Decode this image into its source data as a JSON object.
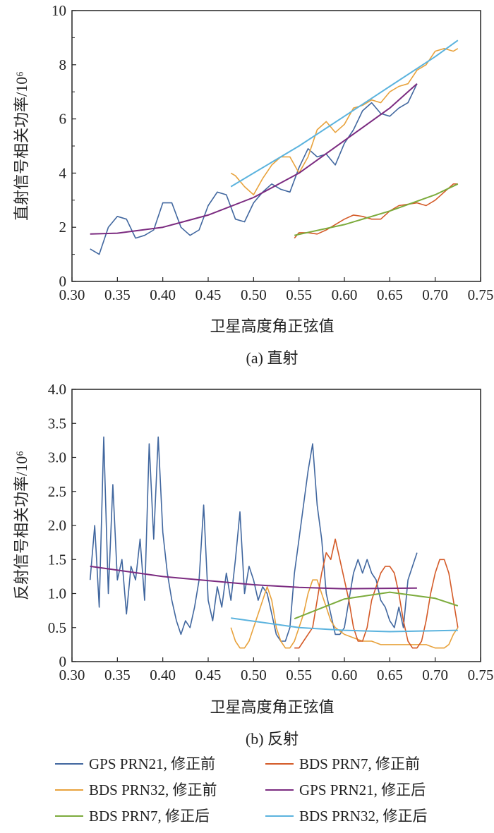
{
  "colors": {
    "gps21_raw": "#41679f",
    "bds7_raw": "#d45a27",
    "bds32_raw": "#e8a23c",
    "gps21_fit": "#7b2b80",
    "bds7_fit": "#7cab3c",
    "bds32_fit": "#5bb3de"
  },
  "legend": [
    {
      "key": "gps21_raw",
      "label": "GPS PRN21, 修正前"
    },
    {
      "key": "bds7_raw",
      "label": "BDS PRN7, 修正前"
    },
    {
      "key": "bds32_raw",
      "label": "BDS PRN32, 修正前"
    },
    {
      "key": "gps21_fit",
      "label": "GPS PRN21, 修正后"
    },
    {
      "key": "bds7_fit",
      "label": "BDS PRN7, 修正后"
    },
    {
      "key": "bds32_fit",
      "label": "BDS PRN32, 修正后"
    }
  ],
  "chart_data": [
    {
      "type": "line",
      "caption": "(a) 直射",
      "xlabel": "卫星高度角正弦值",
      "ylabel": "直射信号相关功率/10⁶",
      "xlim": [
        0.3,
        0.75
      ],
      "ylim": [
        0,
        10
      ],
      "xticks": [
        "0.30",
        "0.35",
        "0.40",
        "0.45",
        "0.50",
        "0.55",
        "0.60",
        "0.65",
        "0.70",
        "0.75"
      ],
      "yticks": [
        "0",
        "2",
        "4",
        "6",
        "8",
        "10"
      ],
      "ytick_values": [
        0,
        2,
        4,
        6,
        8,
        10
      ],
      "grid": false,
      "series": [
        {
          "key": "gps21_raw",
          "x": [
            0.32,
            0.33,
            0.34,
            0.35,
            0.36,
            0.37,
            0.38,
            0.39,
            0.4,
            0.41,
            0.42,
            0.43,
            0.44,
            0.45,
            0.46,
            0.47,
            0.48,
            0.49,
            0.5,
            0.51,
            0.52,
            0.53,
            0.54,
            0.55,
            0.56,
            0.57,
            0.58,
            0.59,
            0.6,
            0.61,
            0.62,
            0.63,
            0.64,
            0.65,
            0.66,
            0.67,
            0.68
          ],
          "y": [
            1.2,
            1.0,
            2.0,
            2.4,
            2.3,
            1.6,
            1.7,
            1.9,
            2.9,
            2.9,
            2.0,
            1.7,
            1.9,
            2.8,
            3.3,
            3.2,
            2.3,
            2.2,
            2.9,
            3.3,
            3.6,
            3.4,
            3.3,
            4.2,
            4.9,
            4.6,
            4.7,
            4.3,
            5.1,
            5.6,
            6.3,
            6.6,
            6.2,
            6.1,
            6.4,
            6.6,
            7.3
          ]
        },
        {
          "key": "bds32_raw",
          "x": [
            0.475,
            0.48,
            0.49,
            0.5,
            0.51,
            0.52,
            0.53,
            0.54,
            0.55,
            0.56,
            0.57,
            0.58,
            0.59,
            0.6,
            0.61,
            0.62,
            0.63,
            0.64,
            0.65,
            0.66,
            0.67,
            0.68,
            0.69,
            0.7,
            0.71,
            0.72,
            0.725
          ],
          "y": [
            4.0,
            3.9,
            3.5,
            3.2,
            3.8,
            4.3,
            4.6,
            4.6,
            4.0,
            4.6,
            5.6,
            5.9,
            5.5,
            5.8,
            6.4,
            6.5,
            6.7,
            6.6,
            7.0,
            7.2,
            7.3,
            7.8,
            8.0,
            8.5,
            8.6,
            8.5,
            8.6
          ]
        },
        {
          "key": "bds7_raw",
          "x": [
            0.545,
            0.55,
            0.56,
            0.57,
            0.58,
            0.59,
            0.6,
            0.61,
            0.62,
            0.63,
            0.64,
            0.65,
            0.66,
            0.67,
            0.68,
            0.69,
            0.7,
            0.71,
            0.72,
            0.725
          ],
          "y": [
            1.6,
            1.8,
            1.8,
            1.75,
            1.9,
            2.1,
            2.3,
            2.45,
            2.4,
            2.3,
            2.3,
            2.6,
            2.8,
            2.85,
            2.9,
            2.8,
            3.0,
            3.3,
            3.6,
            3.6
          ]
        },
        {
          "key": "gps21_fit",
          "x": [
            0.32,
            0.35,
            0.4,
            0.45,
            0.5,
            0.55,
            0.6,
            0.65,
            0.68
          ],
          "y": [
            1.75,
            1.78,
            2.0,
            2.45,
            3.1,
            4.0,
            5.2,
            6.4,
            7.3
          ]
        },
        {
          "key": "bds32_fit",
          "x": [
            0.475,
            0.5,
            0.55,
            0.6,
            0.65,
            0.7,
            0.725
          ],
          "y": [
            3.5,
            4.0,
            5.0,
            6.1,
            7.2,
            8.3,
            8.9
          ]
        },
        {
          "key": "bds7_fit",
          "x": [
            0.545,
            0.6,
            0.65,
            0.7,
            0.725
          ],
          "y": [
            1.7,
            2.1,
            2.6,
            3.2,
            3.6
          ]
        }
      ]
    },
    {
      "type": "line",
      "caption": "(b) 反射",
      "xlabel": "卫星高度角正弦值",
      "ylabel": "反射信号相关功率/10⁶",
      "xlim": [
        0.3,
        0.75
      ],
      "ylim": [
        0,
        4.0
      ],
      "xticks": [
        "0.30",
        "0.35",
        "0.40",
        "0.45",
        "0.50",
        "0.55",
        "0.60",
        "0.65",
        "0.70",
        "0.75"
      ],
      "yticks": [
        "0",
        "0.5",
        "1.0",
        "1.5",
        "2.0",
        "2.5",
        "3.0",
        "3.5",
        "4.0"
      ],
      "ytick_values": [
        0,
        0.5,
        1.0,
        1.5,
        2.0,
        2.5,
        3.0,
        3.5,
        4.0
      ],
      "grid": false,
      "series": [
        {
          "key": "gps21_raw",
          "x": [
            0.32,
            0.325,
            0.33,
            0.335,
            0.34,
            0.345,
            0.35,
            0.355,
            0.36,
            0.365,
            0.37,
            0.375,
            0.38,
            0.385,
            0.39,
            0.395,
            0.4,
            0.405,
            0.41,
            0.415,
            0.42,
            0.425,
            0.43,
            0.435,
            0.44,
            0.445,
            0.45,
            0.455,
            0.46,
            0.465,
            0.47,
            0.475,
            0.48,
            0.485,
            0.49,
            0.495,
            0.5,
            0.505,
            0.51,
            0.515,
            0.52,
            0.525,
            0.53,
            0.535,
            0.54,
            0.545,
            0.55,
            0.555,
            0.56,
            0.565,
            0.57,
            0.575,
            0.58,
            0.585,
            0.59,
            0.595,
            0.6,
            0.605,
            0.61,
            0.615,
            0.62,
            0.625,
            0.63,
            0.635,
            0.64,
            0.645,
            0.65,
            0.655,
            0.66,
            0.665,
            0.67,
            0.675,
            0.68
          ],
          "y": [
            1.2,
            2.0,
            0.8,
            3.3,
            1.0,
            2.6,
            1.2,
            1.5,
            0.7,
            1.4,
            1.2,
            1.8,
            0.9,
            3.2,
            1.8,
            3.3,
            1.9,
            1.3,
            0.9,
            0.6,
            0.4,
            0.6,
            0.5,
            0.8,
            1.2,
            2.3,
            0.9,
            0.6,
            1.1,
            0.8,
            1.3,
            0.9,
            1.5,
            2.2,
            1.0,
            1.4,
            1.2,
            0.9,
            1.1,
            1.0,
            0.7,
            0.4,
            0.3,
            0.3,
            0.5,
            1.3,
            1.8,
            2.3,
            2.8,
            3.2,
            2.3,
            1.8,
            1.0,
            0.7,
            0.4,
            0.4,
            0.5,
            0.9,
            1.3,
            1.5,
            1.3,
            1.5,
            1.3,
            1.2,
            0.9,
            0.8,
            0.6,
            0.5,
            0.8,
            0.5,
            1.2,
            1.4,
            1.6
          ]
        },
        {
          "key": "bds32_raw",
          "x": [
            0.475,
            0.48,
            0.485,
            0.49,
            0.495,
            0.5,
            0.505,
            0.51,
            0.515,
            0.52,
            0.525,
            0.53,
            0.535,
            0.54,
            0.545,
            0.55,
            0.555,
            0.56,
            0.565,
            0.57,
            0.575,
            0.58,
            0.585,
            0.59,
            0.6,
            0.61,
            0.62,
            0.63,
            0.64,
            0.65,
            0.66,
            0.67,
            0.68,
            0.69,
            0.7,
            0.71,
            0.715,
            0.72,
            0.725
          ],
          "y": [
            0.5,
            0.3,
            0.2,
            0.2,
            0.3,
            0.5,
            0.7,
            0.9,
            1.1,
            0.9,
            0.5,
            0.3,
            0.2,
            0.2,
            0.3,
            0.5,
            0.7,
            1.0,
            1.2,
            1.2,
            1.0,
            0.8,
            0.6,
            0.5,
            0.4,
            0.35,
            0.3,
            0.3,
            0.25,
            0.25,
            0.25,
            0.25,
            0.25,
            0.25,
            0.2,
            0.2,
            0.25,
            0.4,
            0.5
          ]
        },
        {
          "key": "bds7_raw",
          "x": [
            0.545,
            0.55,
            0.555,
            0.56,
            0.565,
            0.57,
            0.575,
            0.58,
            0.585,
            0.59,
            0.595,
            0.6,
            0.605,
            0.61,
            0.615,
            0.62,
            0.625,
            0.63,
            0.635,
            0.64,
            0.645,
            0.65,
            0.655,
            0.66,
            0.665,
            0.67,
            0.675,
            0.68,
            0.685,
            0.69,
            0.695,
            0.7,
            0.705,
            0.71,
            0.715,
            0.72,
            0.725
          ],
          "y": [
            0.2,
            0.2,
            0.3,
            0.4,
            0.5,
            0.9,
            1.3,
            1.6,
            1.5,
            1.8,
            1.5,
            1.2,
            0.9,
            0.5,
            0.3,
            0.3,
            0.5,
            0.9,
            1.1,
            1.3,
            1.4,
            1.4,
            1.3,
            1.0,
            0.6,
            0.3,
            0.2,
            0.2,
            0.3,
            0.6,
            1.0,
            1.3,
            1.5,
            1.5,
            1.3,
            0.9,
            0.5
          ]
        },
        {
          "key": "gps21_fit",
          "x": [
            0.32,
            0.4,
            0.5,
            0.55,
            0.6,
            0.68
          ],
          "y": [
            1.4,
            1.25,
            1.13,
            1.09,
            1.07,
            1.08
          ]
        },
        {
          "key": "bds7_fit",
          "x": [
            0.545,
            0.6,
            0.65,
            0.7,
            0.725
          ],
          "y": [
            0.63,
            0.92,
            1.02,
            0.93,
            0.82
          ]
        },
        {
          "key": "bds32_fit",
          "x": [
            0.475,
            0.55,
            0.6,
            0.65,
            0.725
          ],
          "y": [
            0.64,
            0.5,
            0.46,
            0.44,
            0.46
          ]
        }
      ]
    }
  ]
}
